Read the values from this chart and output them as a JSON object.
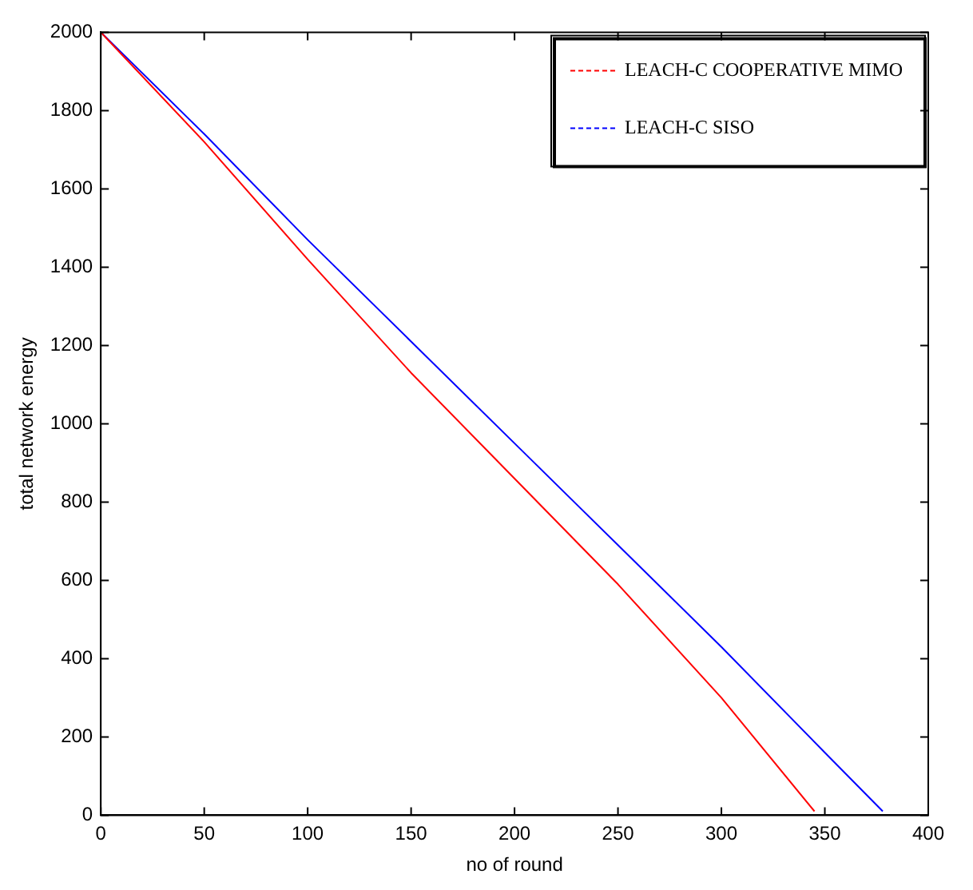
{
  "chart_data": {
    "type": "line",
    "xlabel": "no of round",
    "ylabel": "total network energy",
    "xlim": [
      0,
      400
    ],
    "xticks": [
      0,
      50,
      100,
      150,
      200,
      250,
      300,
      350,
      400
    ],
    "ylim": [
      0,
      2000
    ],
    "yticks": [
      0,
      200,
      400,
      600,
      800,
      1000,
      1200,
      1400,
      1600,
      1800,
      2000
    ],
    "grid": false,
    "legend": "top right",
    "marker": "none",
    "line_style": "solid",
    "series": [
      {
        "name": "LEACH-C COOPERATIVE MIMO",
        "color": "#ff0000",
        "x": [
          0,
          50,
          100,
          150,
          200,
          250,
          300,
          345
        ],
        "values": [
          2000,
          1720,
          1420,
          1130,
          860,
          590,
          300,
          10
        ]
      },
      {
        "name": "LEACH-C SISO",
        "color": "#0000ff",
        "x": [
          0,
          50,
          100,
          150,
          200,
          250,
          300,
          350,
          378
        ],
        "values": [
          2000,
          1740,
          1470,
          1210,
          950,
          690,
          430,
          160,
          10
        ]
      }
    ]
  }
}
